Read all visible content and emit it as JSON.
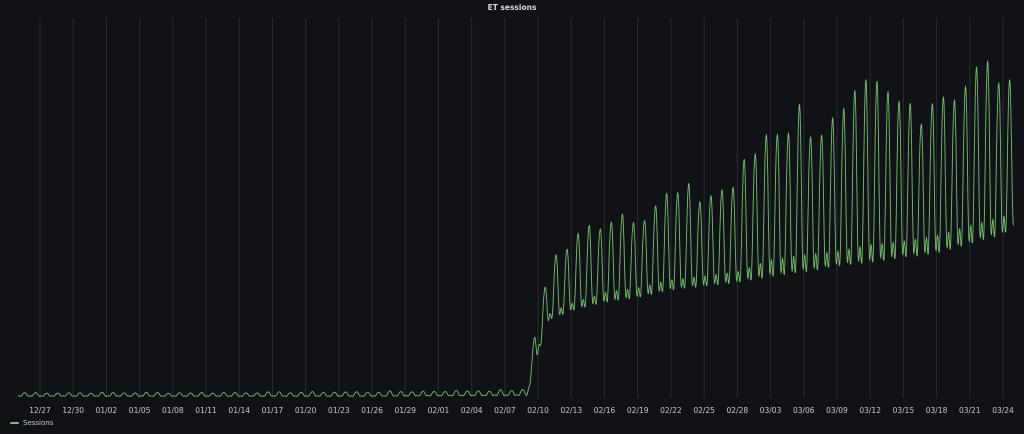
{
  "panel": {
    "title": "ET sessions"
  },
  "colors": {
    "background": "#111217",
    "grid": "#2a2c31",
    "series": "#73bf69",
    "tick_text": "#c7c9cd"
  },
  "chart_data": {
    "type": "line",
    "title": "ET sessions",
    "xlabel": "",
    "ylabel": "",
    "x_range": [
      "2024-12-25",
      "2025-03-26"
    ],
    "x_ticks": [
      "12/27",
      "12/30",
      "01/02",
      "01/05",
      "01/08",
      "01/11",
      "01/14",
      "01/17",
      "01/20",
      "01/23",
      "01/26",
      "01/29",
      "02/01",
      "02/04",
      "02/07",
      "02/10",
      "02/13",
      "02/16",
      "02/19",
      "02/22",
      "02/25",
      "02/28",
      "03/03",
      "03/06",
      "03/09",
      "03/12",
      "03/15",
      "03/18",
      "03/21",
      "03/24"
    ],
    "grid": {
      "vertical": true,
      "horizontal": false
    },
    "y_axis_visible": false,
    "y_range": [
      0,
      400
    ],
    "legend": {
      "placement": "bottom-left"
    },
    "series": [
      {
        "name": "Sessions",
        "color": "#73bf69",
        "sampling": "daily trough and peak (sessions, relative scale)",
        "points": [
          {
            "date": "2024-12-25",
            "low": 2,
            "high": 6
          },
          {
            "date": "2025-01-10",
            "low": 2,
            "high": 6
          },
          {
            "date": "2025-01-25",
            "low": 2,
            "high": 7
          },
          {
            "date": "2025-02-09",
            "low": 3,
            "high": 9
          },
          {
            "date": "2025-02-10",
            "low": 50,
            "high": 100
          },
          {
            "date": "2025-02-11",
            "low": 85,
            "high": 145
          },
          {
            "date": "2025-02-12",
            "low": 90,
            "high": 165
          },
          {
            "date": "2025-02-13",
            "low": 95,
            "high": 170
          },
          {
            "date": "2025-02-16",
            "low": 105,
            "high": 205
          },
          {
            "date": "2025-02-19",
            "low": 110,
            "high": 210
          },
          {
            "date": "2025-02-22",
            "low": 118,
            "high": 225
          },
          {
            "date": "2025-02-25",
            "low": 122,
            "high": 225
          },
          {
            "date": "2025-02-28",
            "low": 126,
            "high": 240
          },
          {
            "date": "2025-03-03",
            "low": 135,
            "high": 310
          },
          {
            "date": "2025-03-06",
            "low": 140,
            "high": 320
          },
          {
            "date": "2025-03-09",
            "low": 145,
            "high": 300
          },
          {
            "date": "2025-03-12",
            "low": 150,
            "high": 340
          },
          {
            "date": "2025-03-15",
            "low": 155,
            "high": 325
          },
          {
            "date": "2025-03-18",
            "low": 160,
            "high": 345
          },
          {
            "date": "2025-03-21",
            "low": 170,
            "high": 360
          },
          {
            "date": "2025-03-24",
            "low": 180,
            "high": 370
          },
          {
            "date": "2025-03-25",
            "low": 185,
            "high": 310
          }
        ]
      }
    ]
  }
}
